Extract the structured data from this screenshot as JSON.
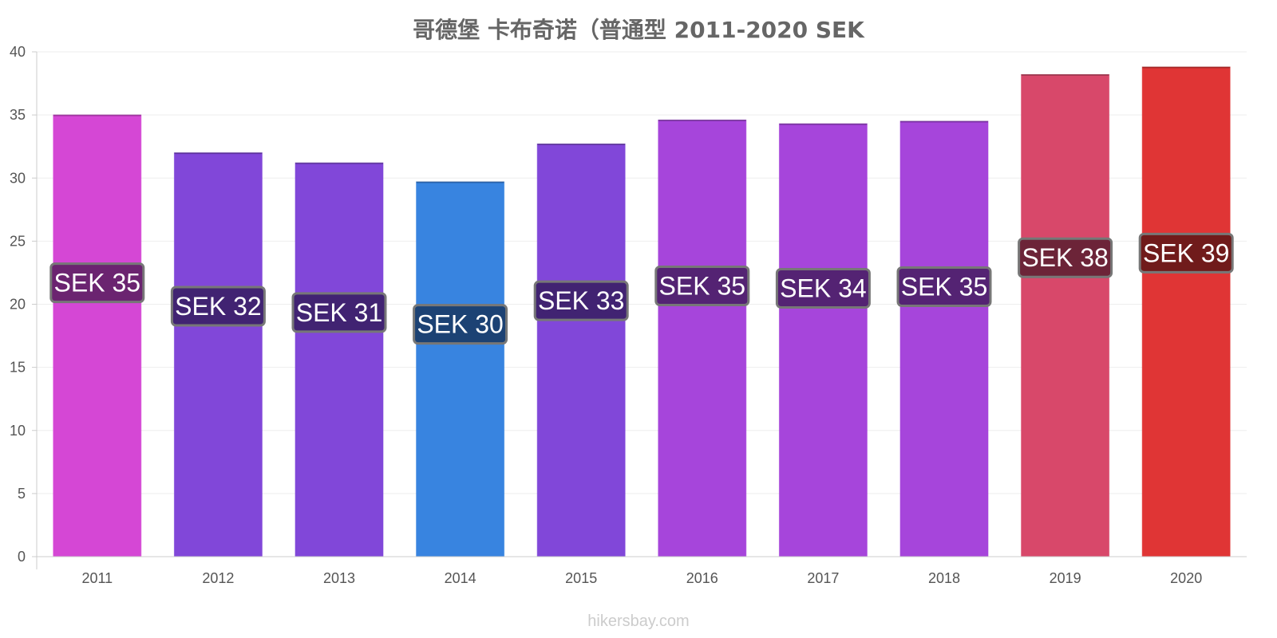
{
  "chart_data": {
    "type": "bar",
    "title": "哥德堡 卡布奇诺（普通型 2011-2020 SEK",
    "xlabel": "",
    "ylabel": "",
    "ylim": [
      0,
      40
    ],
    "yticks": [
      0,
      5,
      10,
      15,
      20,
      25,
      30,
      35,
      40
    ],
    "grid": true,
    "categories": [
      "2011",
      "2012",
      "2013",
      "2014",
      "2015",
      "2016",
      "2017",
      "2018",
      "2019",
      "2020"
    ],
    "values": [
      35.0,
      32.0,
      31.2,
      29.7,
      32.7,
      34.6,
      34.3,
      34.5,
      38.2,
      38.8
    ],
    "data_labels": [
      "SEK 35",
      "SEK 32",
      "SEK 31",
      "SEK 30",
      "SEK 33",
      "SEK 35",
      "SEK 34",
      "SEK 35",
      "SEK 38",
      "SEK 39"
    ],
    "bar_colors": [
      "#d547d5",
      "#8147d9",
      "#8147d9",
      "#3884e0",
      "#8147d9",
      "#a645db",
      "#a645db",
      "#a645db",
      "#d8486a",
      "#e03535"
    ],
    "label_bg_colors": [
      "#6b2470",
      "#412372",
      "#412372",
      "#1c4274",
      "#412372",
      "#542373",
      "#542373",
      "#542373",
      "#6c2438",
      "#701b1b"
    ]
  },
  "watermark": "hikersbay.com"
}
